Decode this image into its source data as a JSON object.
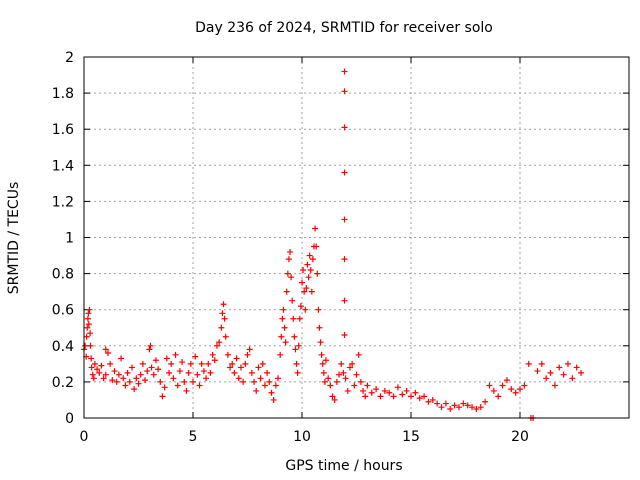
{
  "chart_data": {
    "type": "scatter",
    "title": "Day 236 of 2024, SRMTID for receiver solo",
    "xlabel": "GPS time / hours",
    "ylabel": "SRMTID / TECUs",
    "xlim": [
      0,
      25
    ],
    "ylim": [
      0,
      2
    ],
    "xticks": [
      0,
      5,
      10,
      15,
      20
    ],
    "yticks": [
      0,
      0.2,
      0.4,
      0.6,
      0.8,
      1,
      1.2,
      1.4,
      1.6,
      1.8,
      2
    ],
    "xtick_labels": [
      "0",
      "5",
      "10",
      "15",
      "20"
    ],
    "ytick_labels": [
      "0",
      "0.2",
      "0.4",
      "0.6",
      "0.8",
      "1",
      "1.2",
      "1.4",
      "1.6",
      "1.8",
      "2"
    ],
    "grid": true,
    "marker": "+",
    "color": "#ff0000",
    "series": [
      {
        "name": "SRMTID",
        "points": [
          [
            0.0,
            0.38
          ],
          [
            0.05,
            0.4
          ],
          [
            0.1,
            0.34
          ],
          [
            0.12,
            0.45
          ],
          [
            0.15,
            0.5
          ],
          [
            0.18,
            0.55
          ],
          [
            0.2,
            0.58
          ],
          [
            0.22,
            0.52
          ],
          [
            0.25,
            0.6
          ],
          [
            0.28,
            0.47
          ],
          [
            0.3,
            0.4
          ],
          [
            0.33,
            0.33
          ],
          [
            0.35,
            0.28
          ],
          [
            0.4,
            0.24
          ],
          [
            0.45,
            0.22
          ],
          [
            0.5,
            0.3
          ],
          [
            0.6,
            0.27
          ],
          [
            0.7,
            0.25
          ],
          [
            0.8,
            0.29
          ],
          [
            0.9,
            0.22
          ],
          [
            1.0,
            0.24
          ],
          [
            1.0,
            0.38
          ],
          [
            1.1,
            0.36
          ],
          [
            1.2,
            0.3
          ],
          [
            1.3,
            0.21
          ],
          [
            1.4,
            0.26
          ],
          [
            1.5,
            0.2
          ],
          [
            1.6,
            0.24
          ],
          [
            1.7,
            0.33
          ],
          [
            1.8,
            0.22
          ],
          [
            1.9,
            0.18
          ],
          [
            2.0,
            0.25
          ],
          [
            2.1,
            0.2
          ],
          [
            2.2,
            0.28
          ],
          [
            2.3,
            0.16
          ],
          [
            2.4,
            0.22
          ],
          [
            2.5,
            0.19
          ],
          [
            2.6,
            0.24
          ],
          [
            2.7,
            0.3
          ],
          [
            2.8,
            0.21
          ],
          [
            2.9,
            0.26
          ],
          [
            3.0,
            0.38
          ],
          [
            3.05,
            0.4
          ],
          [
            3.1,
            0.28
          ],
          [
            3.2,
            0.24
          ],
          [
            3.3,
            0.32
          ],
          [
            3.4,
            0.27
          ],
          [
            3.5,
            0.2
          ],
          [
            3.6,
            0.12
          ],
          [
            3.7,
            0.17
          ],
          [
            3.8,
            0.33
          ],
          [
            3.9,
            0.25
          ],
          [
            4.0,
            0.3
          ],
          [
            4.1,
            0.22
          ],
          [
            4.2,
            0.35
          ],
          [
            4.3,
            0.18
          ],
          [
            4.4,
            0.26
          ],
          [
            4.5,
            0.31
          ],
          [
            4.6,
            0.2
          ],
          [
            4.7,
            0.15
          ],
          [
            4.8,
            0.25
          ],
          [
            4.9,
            0.3
          ],
          [
            5.0,
            0.2
          ],
          [
            5.1,
            0.34
          ],
          [
            5.2,
            0.24
          ],
          [
            5.3,
            0.18
          ],
          [
            5.4,
            0.3
          ],
          [
            5.5,
            0.26
          ],
          [
            5.6,
            0.22
          ],
          [
            5.7,
            0.3
          ],
          [
            5.8,
            0.25
          ],
          [
            5.9,
            0.35
          ],
          [
            6.0,
            0.32
          ],
          [
            6.1,
            0.4
          ],
          [
            6.2,
            0.42
          ],
          [
            6.3,
            0.5
          ],
          [
            6.35,
            0.58
          ],
          [
            6.4,
            0.63
          ],
          [
            6.45,
            0.55
          ],
          [
            6.5,
            0.45
          ],
          [
            6.6,
            0.35
          ],
          [
            6.7,
            0.28
          ],
          [
            6.8,
            0.3
          ],
          [
            6.9,
            0.25
          ],
          [
            7.0,
            0.33
          ],
          [
            7.1,
            0.22
          ],
          [
            7.2,
            0.28
          ],
          [
            7.3,
            0.2
          ],
          [
            7.4,
            0.3
          ],
          [
            7.5,
            0.35
          ],
          [
            7.6,
            0.38
          ],
          [
            7.7,
            0.25
          ],
          [
            7.8,
            0.2
          ],
          [
            7.9,
            0.15
          ],
          [
            8.0,
            0.28
          ],
          [
            8.1,
            0.22
          ],
          [
            8.2,
            0.3
          ],
          [
            8.3,
            0.18
          ],
          [
            8.4,
            0.25
          ],
          [
            8.5,
            0.2
          ],
          [
            8.6,
            0.14
          ],
          [
            8.7,
            0.1
          ],
          [
            8.8,
            0.18
          ],
          [
            8.9,
            0.22
          ],
          [
            9.0,
            0.35
          ],
          [
            9.05,
            0.45
          ],
          [
            9.1,
            0.55
          ],
          [
            9.15,
            0.6
          ],
          [
            9.2,
            0.5
          ],
          [
            9.25,
            0.42
          ],
          [
            9.3,
            0.7
          ],
          [
            9.35,
            0.8
          ],
          [
            9.4,
            0.88
          ],
          [
            9.45,
            0.92
          ],
          [
            9.5,
            0.78
          ],
          [
            9.55,
            0.65
          ],
          [
            9.6,
            0.55
          ],
          [
            9.65,
            0.45
          ],
          [
            9.7,
            0.38
          ],
          [
            9.75,
            0.3
          ],
          [
            9.8,
            0.25
          ],
          [
            9.85,
            0.4
          ],
          [
            9.9,
            0.55
          ],
          [
            9.95,
            0.62
          ],
          [
            10.0,
            0.75
          ],
          [
            10.05,
            0.82
          ],
          [
            10.1,
            0.7
          ],
          [
            10.15,
            0.6
          ],
          [
            10.2,
            0.72
          ],
          [
            10.25,
            0.85
          ],
          [
            10.3,
            0.78
          ],
          [
            10.35,
            0.9
          ],
          [
            10.4,
            0.82
          ],
          [
            10.45,
            0.7
          ],
          [
            10.5,
            0.88
          ],
          [
            10.55,
            0.95
          ],
          [
            10.6,
            1.05
          ],
          [
            10.65,
            0.95
          ],
          [
            10.7,
            0.8
          ],
          [
            10.75,
            0.6
          ],
          [
            10.8,
            0.5
          ],
          [
            10.85,
            0.42
          ],
          [
            10.9,
            0.35
          ],
          [
            10.95,
            0.3
          ],
          [
            11.0,
            0.25
          ],
          [
            11.05,
            0.2
          ],
          [
            11.1,
            0.32
          ],
          [
            11.2,
            0.22
          ],
          [
            11.3,
            0.18
          ],
          [
            11.4,
            0.12
          ],
          [
            11.5,
            0.1
          ],
          [
            11.6,
            0.2
          ],
          [
            11.7,
            0.24
          ],
          [
            11.8,
            0.3
          ],
          [
            11.9,
            0.25
          ],
          [
            11.95,
            0.46
          ],
          [
            11.95,
            0.65
          ],
          [
            11.95,
            0.88
          ],
          [
            11.95,
            1.1
          ],
          [
            11.95,
            1.36
          ],
          [
            11.95,
            1.61
          ],
          [
            11.95,
            1.81
          ],
          [
            11.95,
            1.92
          ],
          [
            12.0,
            0.22
          ],
          [
            12.1,
            0.15
          ],
          [
            12.2,
            0.28
          ],
          [
            12.3,
            0.3
          ],
          [
            12.4,
            0.18
          ],
          [
            12.5,
            0.24
          ],
          [
            12.6,
            0.35
          ],
          [
            12.7,
            0.2
          ],
          [
            12.8,
            0.15
          ],
          [
            12.9,
            0.12
          ],
          [
            13.0,
            0.18
          ],
          [
            13.2,
            0.14
          ],
          [
            13.4,
            0.16
          ],
          [
            13.6,
            0.12
          ],
          [
            13.8,
            0.15
          ],
          [
            14.0,
            0.14
          ],
          [
            14.2,
            0.12
          ],
          [
            14.4,
            0.17
          ],
          [
            14.6,
            0.13
          ],
          [
            14.8,
            0.15
          ],
          [
            15.0,
            0.12
          ],
          [
            15.2,
            0.14
          ],
          [
            15.4,
            0.11
          ],
          [
            15.6,
            0.12
          ],
          [
            15.8,
            0.09
          ],
          [
            16.0,
            0.1
          ],
          [
            16.2,
            0.08
          ],
          [
            16.4,
            0.06
          ],
          [
            16.6,
            0.08
          ],
          [
            16.8,
            0.05
          ],
          [
            17.0,
            0.07
          ],
          [
            17.2,
            0.06
          ],
          [
            17.4,
            0.08
          ],
          [
            17.6,
            0.07
          ],
          [
            17.8,
            0.06
          ],
          [
            18.0,
            0.05
          ],
          [
            18.2,
            0.06
          ],
          [
            18.4,
            0.09
          ],
          [
            18.6,
            0.18
          ],
          [
            18.8,
            0.15
          ],
          [
            19.0,
            0.12
          ],
          [
            19.2,
            0.18
          ],
          [
            19.4,
            0.21
          ],
          [
            19.6,
            0.16
          ],
          [
            19.8,
            0.14
          ],
          [
            20.0,
            0.16
          ],
          [
            20.2,
            0.18
          ],
          [
            20.4,
            0.3
          ],
          [
            20.5,
            0.0
          ],
          [
            20.6,
            0.0
          ],
          [
            20.8,
            0.26
          ],
          [
            21.0,
            0.3
          ],
          [
            21.2,
            0.22
          ],
          [
            21.4,
            0.25
          ],
          [
            21.6,
            0.18
          ],
          [
            21.8,
            0.28
          ],
          [
            22.0,
            0.24
          ],
          [
            22.2,
            0.3
          ],
          [
            22.4,
            0.22
          ],
          [
            22.6,
            0.28
          ],
          [
            22.8,
            0.25
          ]
        ]
      }
    ]
  }
}
